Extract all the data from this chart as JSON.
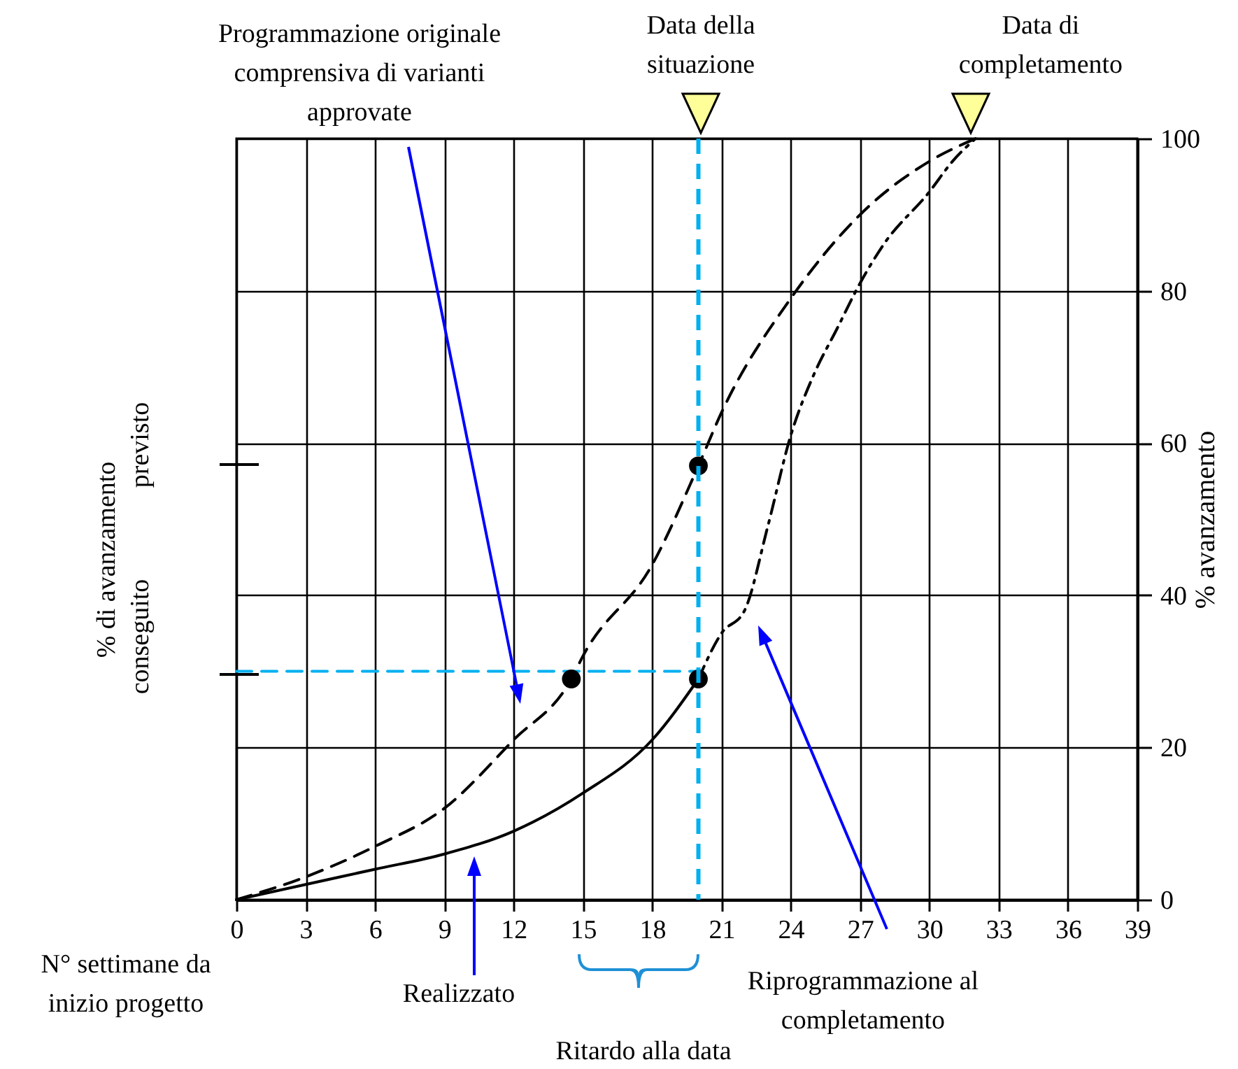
{
  "chart_data": {
    "type": "line",
    "xlabel": "N° settimane da inizio progetto",
    "ylabel": "% di avanzamento",
    "y2label": "% avanzamento",
    "xlim": [
      0,
      39
    ],
    "xticks": [
      0,
      3,
      6,
      9,
      12,
      15,
      18,
      21,
      24,
      27,
      30,
      33,
      36,
      39
    ],
    "y2lim": [
      0,
      100
    ],
    "y2ticks": [
      0,
      20,
      40,
      60,
      80,
      100
    ],
    "grid": true,
    "series": [
      {
        "axis": "y2",
        "color": "#000000",
        "line_style": "dashed",
        "x": [
          0,
          3,
          6,
          9,
          12,
          14.5,
          15,
          18,
          20,
          21,
          24,
          27,
          30,
          32
        ],
        "values": [
          0,
          3,
          7,
          12,
          21,
          29,
          32,
          44,
          57,
          64,
          79,
          90,
          97,
          100
        ]
      },
      {
        "axis": "y2",
        "color": "#000000",
        "line_style": "solid",
        "x": [
          0,
          3,
          6,
          9,
          12,
          15,
          18,
          20
        ],
        "values": [
          0,
          2,
          4,
          6,
          9,
          14,
          21,
          29
        ]
      },
      {
        "axis": "y2",
        "color": "#000000",
        "line_style": "dashdot",
        "x": [
          20,
          21,
          22,
          23,
          24,
          25,
          26,
          27,
          28,
          30,
          31,
          32
        ],
        "values": [
          29,
          35,
          38,
          49,
          61,
          69,
          75,
          81,
          86,
          93,
          97,
          100
        ]
      },
      {
        "axis": "y2",
        "color": "#00b0f0",
        "line_style": "dashed",
        "x": [
          0,
          20
        ],
        "values": [
          30,
          30
        ]
      },
      {
        "type": "scatter",
        "axis": "y2",
        "color": "#000000",
        "marker": "circle",
        "x": [
          14.5,
          20,
          20
        ],
        "values": [
          29,
          29,
          57
        ]
      }
    ],
    "ref_lines": [
      {
        "axis": "x",
        "value": 20,
        "color": "#00b0f0",
        "line_style": "dashed"
      }
    ],
    "annotations": [
      "Programmazione originale comprensiva di varianti approvate",
      "Realizzato",
      "Riprogrammazione al completamento",
      "Ritardo alla data",
      "Data della situazione",
      "Data di completamento",
      "conseguito",
      "previsto"
    ]
  }
}
